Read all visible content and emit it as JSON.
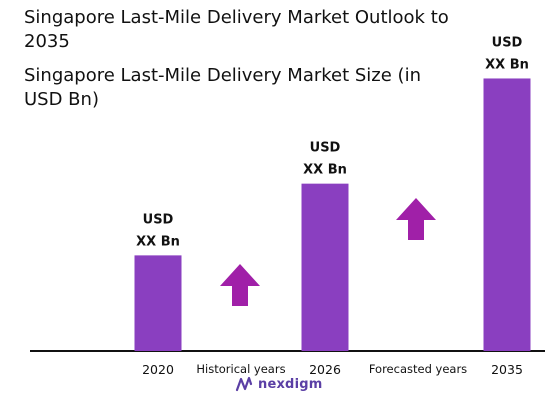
{
  "titles": {
    "main": "Singapore Last-Mile Delivery Market Outlook to 2035",
    "sub": "Singapore Last-Mile Delivery Market Size (in USD Bn)"
  },
  "chart_data": {
    "type": "bar",
    "categories": [
      "2020",
      "2026",
      "2035"
    ],
    "values": [
      1.0,
      1.75,
      2.85
    ],
    "value_labels": [
      [
        "USD",
        "XX Bn"
      ],
      [
        "USD",
        "XX Bn"
      ],
      [
        "USD",
        "XX Bn"
      ]
    ],
    "annotations": [
      "Historical years",
      "Forecasted years"
    ],
    "ylim": [
      0,
      3.2
    ],
    "bar_color": "#8a3fc0",
    "arrow_color": "#a020a8",
    "axis_color": "#111111",
    "grid": false
  },
  "logo": {
    "text": "nexdigm",
    "color": "#5b3fa5"
  }
}
